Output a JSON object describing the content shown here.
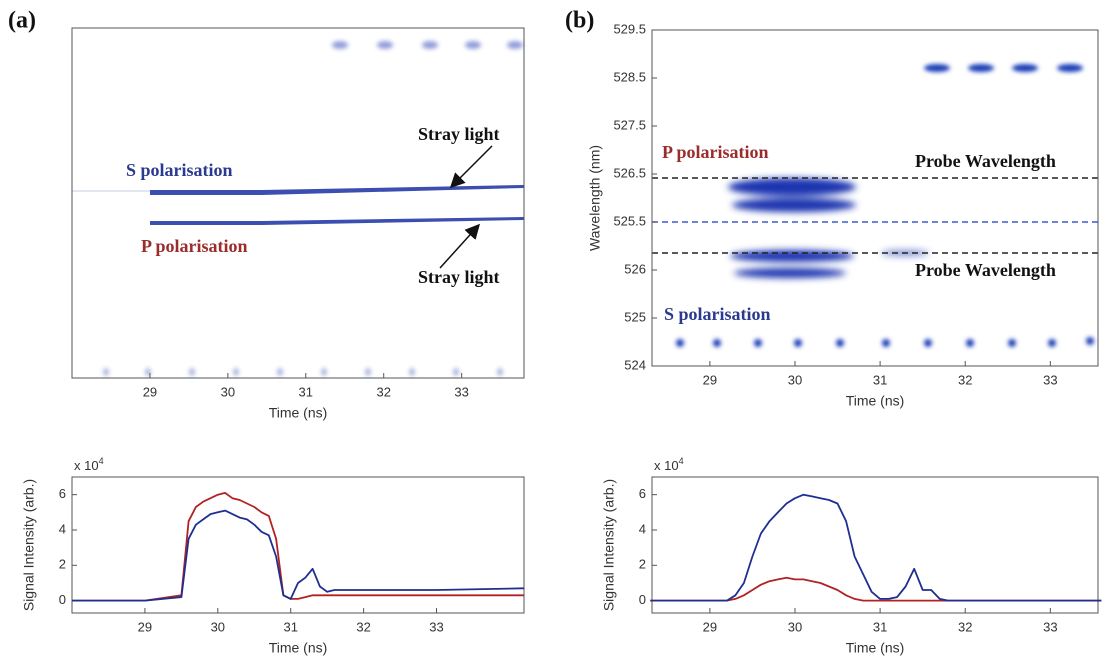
{
  "chart_data": [
    {
      "type": "image",
      "label": "(a)",
      "xlabel": "Time (ns)",
      "xlim": [
        28,
        33.8
      ],
      "xticks": [
        29,
        30,
        31,
        32,
        33
      ],
      "annotations": [
        {
          "text": "S polarisation",
          "color": "#2a3a8f"
        },
        {
          "text": "P polarisation",
          "color": "#9b2c2c"
        },
        {
          "text": "Stray light",
          "color": "#111111"
        },
        {
          "text": "Stray light",
          "color": "#111111"
        }
      ]
    },
    {
      "type": "line",
      "xlabel": "Time (ns)",
      "ylabel": "Signal Intensity (arb.)",
      "y_multiplier": {
        "base": "x 10",
        "exp": "4"
      },
      "xlim": [
        28,
        34.2
      ],
      "xticks": [
        29,
        30,
        31,
        32,
        33
      ],
      "ylim": [
        -0.7,
        7
      ],
      "yticks": [
        0,
        2,
        4,
        6
      ],
      "x": [
        28,
        29,
        29.5,
        29.6,
        29.7,
        29.8,
        29.9,
        30.0,
        30.1,
        30.2,
        30.3,
        30.4,
        30.5,
        30.6,
        30.7,
        30.8,
        30.9,
        31.0,
        31.1,
        31.2,
        31.3,
        31.4,
        31.5,
        31.6,
        32,
        33,
        34.2
      ],
      "series": [
        {
          "color": "#b22222",
          "values": [
            0,
            0,
            0.3,
            4.5,
            5.3,
            5.6,
            5.8,
            6.0,
            6.1,
            5.8,
            5.7,
            5.5,
            5.3,
            5.0,
            4.8,
            3.5,
            0.3,
            0.1,
            0.1,
            0.2,
            0.3,
            0.3,
            0.3,
            0.3,
            0.3,
            0.3,
            0.3
          ]
        },
        {
          "color": "#1f2f8f",
          "values": [
            0,
            0,
            0.2,
            3.5,
            4.3,
            4.6,
            4.9,
            5.0,
            5.1,
            4.9,
            4.7,
            4.6,
            4.3,
            3.9,
            3.7,
            2.5,
            0.3,
            0.1,
            1.0,
            1.3,
            1.8,
            0.8,
            0.5,
            0.6,
            0.6,
            0.6,
            0.7
          ]
        }
      ]
    },
    {
      "type": "image",
      "label": "(b)",
      "xlabel": "Time (ns)",
      "ylabel": "Wavelength (nm)",
      "xlim": [
        28.32,
        33.56
      ],
      "xticks": [
        29,
        30,
        31,
        32,
        33
      ],
      "ylim": [
        0,
        7
      ],
      "yticks": [
        {
          "value": 7,
          "label": "529.5"
        },
        {
          "value": 6,
          "label": "528.5"
        },
        {
          "value": 5,
          "label": "527.5"
        },
        {
          "value": 4,
          "label": "526.5"
        },
        {
          "value": 3,
          "label": "525.5"
        },
        {
          "value": 2,
          "label": "526"
        },
        {
          "value": 1,
          "label": "525"
        },
        {
          "value": 0,
          "label": "524"
        }
      ],
      "annotations": [
        {
          "text": "P polarisation",
          "color": "#9b2c2c"
        },
        {
          "text": "Probe Wavelength",
          "color": "#111111"
        },
        {
          "text": "Probe Wavelength",
          "color": "#111111"
        },
        {
          "text": "S polarisation",
          "color": "#2a3a8f"
        }
      ]
    },
    {
      "type": "line",
      "xlabel": "Time (ns)",
      "ylabel": "Signal Intensity (arb.)",
      "y_multiplier": {
        "base": "x 10",
        "exp": "4"
      },
      "xlim": [
        28.32,
        33.56
      ],
      "xticks": [
        29,
        30,
        31,
        32,
        33
      ],
      "ylim": [
        -0.7,
        7
      ],
      "yticks": [
        0,
        2,
        4,
        6
      ],
      "x": [
        28.3,
        29,
        29.2,
        29.3,
        29.4,
        29.5,
        29.6,
        29.7,
        29.8,
        29.9,
        30.0,
        30.1,
        30.2,
        30.3,
        30.4,
        30.5,
        30.6,
        30.7,
        30.8,
        30.9,
        31.0,
        31.1,
        31.2,
        31.3,
        31.4,
        31.5,
        31.6,
        31.7,
        31.8,
        32,
        33,
        33.6
      ],
      "series": [
        {
          "color": "#b22222",
          "values": [
            0,
            0,
            0,
            0.1,
            0.3,
            0.6,
            0.9,
            1.1,
            1.2,
            1.3,
            1.2,
            1.2,
            1.1,
            1.0,
            0.8,
            0.6,
            0.3,
            0.1,
            0,
            0,
            0,
            0,
            0,
            0,
            0,
            0,
            0,
            0,
            0,
            0,
            0,
            0
          ]
        },
        {
          "color": "#1f2f8f",
          "values": [
            0,
            0,
            0,
            0.3,
            1.0,
            2.5,
            3.8,
            4.5,
            5.0,
            5.5,
            5.8,
            6.0,
            5.9,
            5.8,
            5.7,
            5.5,
            4.5,
            2.5,
            1.5,
            0.5,
            0.1,
            0.1,
            0.2,
            0.8,
            1.8,
            0.6,
            0.6,
            0.1,
            0,
            0,
            0,
            0
          ]
        }
      ]
    }
  ]
}
